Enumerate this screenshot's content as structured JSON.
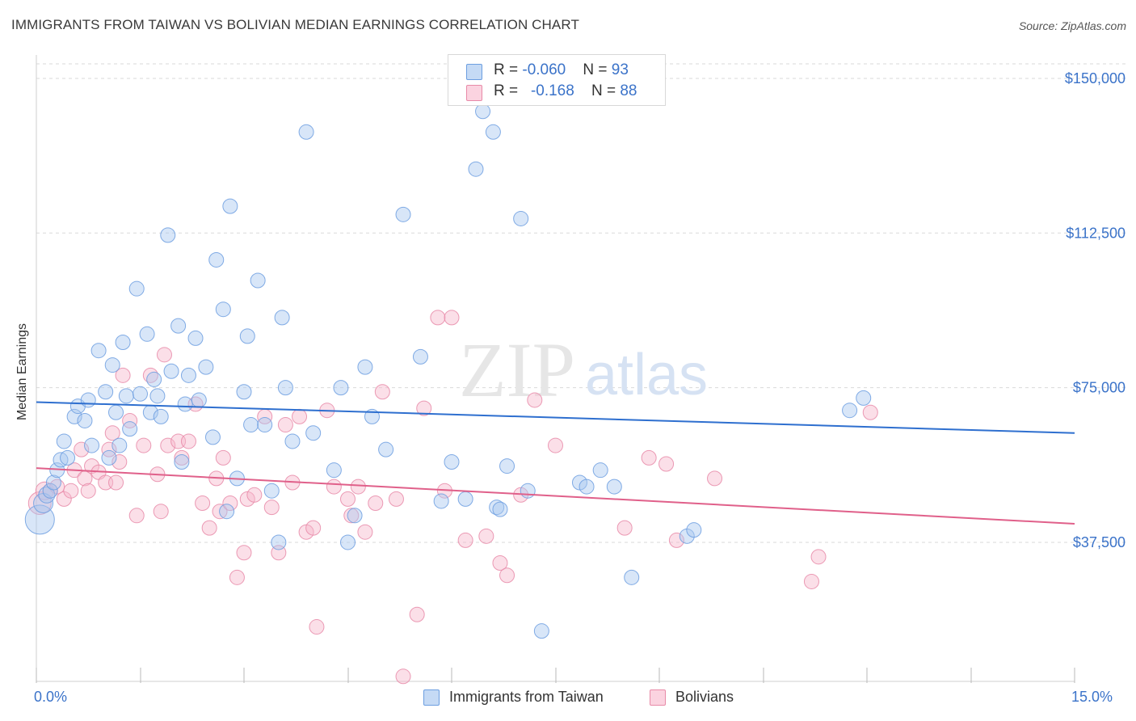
{
  "title": "IMMIGRANTS FROM TAIWAN VS BOLIVIAN MEDIAN EARNINGS CORRELATION CHART",
  "source": "Source: ZipAtlas.com",
  "watermark": {
    "zip": "ZIP",
    "atlas": "atlas"
  },
  "legend": {
    "rows": [
      {
        "r_label": "R = ",
        "r_value": "-0.060",
        "n_label": "N = ",
        "n_value": "93",
        "color": "#a9c8f0"
      },
      {
        "r_label": "R = ",
        "r_value": "-0.168",
        "n_label": "N = ",
        "n_value": "88",
        "color": "#f7b8cc"
      }
    ]
  },
  "bottom_legend": [
    {
      "label": "Immigrants from Taiwan",
      "color": "#a9c8f0"
    },
    {
      "label": "Bolivians",
      "color": "#f7b8cc"
    }
  ],
  "colors": {
    "taiwan_fill": "#a9c8f0",
    "taiwan_stroke": "#6c9ee0",
    "taiwan_line": "#2e6fcf",
    "bolivian_fill": "#f7b8cc",
    "bolivian_stroke": "#e88aa8",
    "bolivian_line": "#e0608a",
    "axis_label": "#3b73c9",
    "grid": "#d9d9d9"
  },
  "chart_data": {
    "type": "scatter",
    "title": "IMMIGRANTS FROM TAIWAN VS BOLIVIAN MEDIAN EARNINGS CORRELATION CHART",
    "xlabel": "",
    "ylabel": "Median Earnings",
    "xlim": [
      0,
      15
    ],
    "ylim": [
      0,
      152000
    ],
    "x_tick_labels": [
      {
        "x": 0,
        "label": "0.0%"
      },
      {
        "x": 15,
        "label": "15.0%"
      }
    ],
    "y_tick_labels": [
      {
        "y": 37500,
        "label": "$37,500"
      },
      {
        "y": 75000,
        "label": "$75,000"
      },
      {
        "y": 112500,
        "label": "$112,500"
      },
      {
        "y": 150000,
        "label": "$150,000"
      }
    ],
    "series": [
      {
        "name": "Immigrants from Taiwan",
        "r": -0.06,
        "n": 93,
        "trend": [
          [
            0,
            71500
          ],
          [
            15,
            64000
          ]
        ],
        "points": [
          [
            0.05,
            43000,
            18
          ],
          [
            0.1,
            47000,
            12
          ],
          [
            0.15,
            49000,
            10
          ],
          [
            0.2,
            50000,
            9
          ],
          [
            0.25,
            52000,
            9
          ],
          [
            0.3,
            55000,
            9
          ],
          [
            0.35,
            57500,
            9
          ],
          [
            0.4,
            62000,
            9
          ],
          [
            0.45,
            58000,
            9
          ],
          [
            0.55,
            68000,
            9
          ],
          [
            0.6,
            70500,
            9
          ],
          [
            0.7,
            67000,
            9
          ],
          [
            0.75,
            72000,
            9
          ],
          [
            0.8,
            61000,
            9
          ],
          [
            0.9,
            84000,
            9
          ],
          [
            1.0,
            74000,
            9
          ],
          [
            1.05,
            58000,
            9
          ],
          [
            1.1,
            80500,
            9
          ],
          [
            1.15,
            69000,
            9
          ],
          [
            1.2,
            61000,
            9
          ],
          [
            1.25,
            86000,
            9
          ],
          [
            1.3,
            73000,
            9
          ],
          [
            1.35,
            65000,
            9
          ],
          [
            1.45,
            99000,
            9
          ],
          [
            1.5,
            73500,
            9
          ],
          [
            1.6,
            88000,
            9
          ],
          [
            1.65,
            69000,
            9
          ],
          [
            1.7,
            77000,
            9
          ],
          [
            1.75,
            73000,
            9
          ],
          [
            1.8,
            68000,
            9
          ],
          [
            1.9,
            112000,
            9
          ],
          [
            1.95,
            79000,
            9
          ],
          [
            2.05,
            90000,
            9
          ],
          [
            2.1,
            57000,
            9
          ],
          [
            2.15,
            71000,
            9
          ],
          [
            2.2,
            78000,
            9
          ],
          [
            2.3,
            87000,
            9
          ],
          [
            2.35,
            72000,
            9
          ],
          [
            2.45,
            80000,
            9
          ],
          [
            2.55,
            63000,
            9
          ],
          [
            2.6,
            106000,
            9
          ],
          [
            2.7,
            94000,
            9
          ],
          [
            2.75,
            45000,
            9
          ],
          [
            2.8,
            119000,
            9
          ],
          [
            2.9,
            53000,
            9
          ],
          [
            3.0,
            74000,
            9
          ],
          [
            3.05,
            87500,
            9
          ],
          [
            3.1,
            66000,
            9
          ],
          [
            3.2,
            101000,
            9
          ],
          [
            3.3,
            66000,
            9
          ],
          [
            3.4,
            50000,
            9
          ],
          [
            3.5,
            37500,
            9
          ],
          [
            3.55,
            92000,
            9
          ],
          [
            3.6,
            75000,
            9
          ],
          [
            3.7,
            62000,
            9
          ],
          [
            3.9,
            137000,
            9
          ],
          [
            4.0,
            64000,
            9
          ],
          [
            4.3,
            55000,
            9
          ],
          [
            4.4,
            75000,
            9
          ],
          [
            4.5,
            37500,
            9
          ],
          [
            4.6,
            44000,
            9
          ],
          [
            4.75,
            80000,
            9
          ],
          [
            4.85,
            68000,
            9
          ],
          [
            5.05,
            60000,
            9
          ],
          [
            5.3,
            117000,
            9
          ],
          [
            5.55,
            82500,
            9
          ],
          [
            5.85,
            47500,
            9
          ],
          [
            6.0,
            57000,
            9
          ],
          [
            6.2,
            48000,
            9
          ],
          [
            6.35,
            128000,
            9
          ],
          [
            6.45,
            142000,
            9
          ],
          [
            6.6,
            137000,
            9
          ],
          [
            6.65,
            46000,
            9
          ],
          [
            6.7,
            45500,
            9
          ],
          [
            6.8,
            56000,
            9
          ],
          [
            7.0,
            116000,
            9
          ],
          [
            7.1,
            50000,
            9
          ],
          [
            7.3,
            16000,
            9
          ],
          [
            7.85,
            52000,
            9
          ],
          [
            7.95,
            51000,
            9
          ],
          [
            8.15,
            55000,
            9
          ],
          [
            8.35,
            51000,
            9
          ],
          [
            8.6,
            29000,
            9
          ],
          [
            9.4,
            39000,
            9
          ],
          [
            9.5,
            40500,
            9
          ],
          [
            11.75,
            69500,
            9
          ],
          [
            11.95,
            72500,
            9
          ]
        ]
      },
      {
        "name": "Bolivians",
        "r": -0.168,
        "n": 88,
        "trend": [
          [
            0,
            55500
          ],
          [
            15,
            42000
          ]
        ],
        "points": [
          [
            0.05,
            47000,
            14
          ],
          [
            0.12,
            50000,
            11
          ],
          [
            0.2,
            50000,
            9
          ],
          [
            0.3,
            51000,
            9
          ],
          [
            0.4,
            48000,
            9
          ],
          [
            0.5,
            50000,
            9
          ],
          [
            0.55,
            55000,
            9
          ],
          [
            0.65,
            60000,
            9
          ],
          [
            0.7,
            53000,
            9
          ],
          [
            0.75,
            50000,
            9
          ],
          [
            0.8,
            56000,
            9
          ],
          [
            0.9,
            54500,
            9
          ],
          [
            1.0,
            52000,
            9
          ],
          [
            1.05,
            60000,
            9
          ],
          [
            1.1,
            64000,
            9
          ],
          [
            1.15,
            52000,
            9
          ],
          [
            1.2,
            57000,
            9
          ],
          [
            1.25,
            78000,
            9
          ],
          [
            1.35,
            67000,
            9
          ],
          [
            1.45,
            44000,
            9
          ],
          [
            1.55,
            61000,
            9
          ],
          [
            1.65,
            78000,
            9
          ],
          [
            1.75,
            54000,
            9
          ],
          [
            1.8,
            45000,
            9
          ],
          [
            1.85,
            83000,
            9
          ],
          [
            1.9,
            61000,
            9
          ],
          [
            2.05,
            62000,
            9
          ],
          [
            2.1,
            58000,
            9
          ],
          [
            2.2,
            62000,
            9
          ],
          [
            2.3,
            71000,
            9
          ],
          [
            2.4,
            47000,
            9
          ],
          [
            2.5,
            41000,
            9
          ],
          [
            2.6,
            53000,
            9
          ],
          [
            2.65,
            45000,
            9
          ],
          [
            2.7,
            58000,
            9
          ],
          [
            2.8,
            47000,
            9
          ],
          [
            2.9,
            29000,
            9
          ],
          [
            3.0,
            35000,
            9
          ],
          [
            3.05,
            48000,
            9
          ],
          [
            3.15,
            49000,
            9
          ],
          [
            3.3,
            68000,
            9
          ],
          [
            3.4,
            46000,
            9
          ],
          [
            3.5,
            35000,
            9
          ],
          [
            3.6,
            66000,
            9
          ],
          [
            3.7,
            52000,
            9
          ],
          [
            3.8,
            68000,
            9
          ],
          [
            3.9,
            40000,
            9
          ],
          [
            4.0,
            41000,
            9
          ],
          [
            4.05,
            17000,
            9
          ],
          [
            4.2,
            69500,
            9
          ],
          [
            4.3,
            51000,
            9
          ],
          [
            4.5,
            48000,
            9
          ],
          [
            4.55,
            44000,
            9
          ],
          [
            4.65,
            51000,
            9
          ],
          [
            4.75,
            40000,
            9
          ],
          [
            4.9,
            47000,
            9
          ],
          [
            5.0,
            74000,
            9
          ],
          [
            5.2,
            48000,
            9
          ],
          [
            5.3,
            5000,
            9
          ],
          [
            5.5,
            20000,
            9
          ],
          [
            5.6,
            70000,
            9
          ],
          [
            5.8,
            92000,
            9
          ],
          [
            5.9,
            50000,
            9
          ],
          [
            6.0,
            92000,
            9
          ],
          [
            6.2,
            38000,
            9
          ],
          [
            6.5,
            39000,
            9
          ],
          [
            6.7,
            32500,
            9
          ],
          [
            6.8,
            29500,
            9
          ],
          [
            7.0,
            49000,
            9
          ],
          [
            7.2,
            72000,
            9
          ],
          [
            7.5,
            61000,
            9
          ],
          [
            8.5,
            41000,
            9
          ],
          [
            8.85,
            58000,
            9
          ],
          [
            9.1,
            56500,
            9
          ],
          [
            9.25,
            38000,
            9
          ],
          [
            9.8,
            53000,
            9
          ],
          [
            11.2,
            28000,
            9
          ],
          [
            11.3,
            34000,
            9
          ],
          [
            12.05,
            69000,
            9
          ]
        ]
      }
    ]
  }
}
